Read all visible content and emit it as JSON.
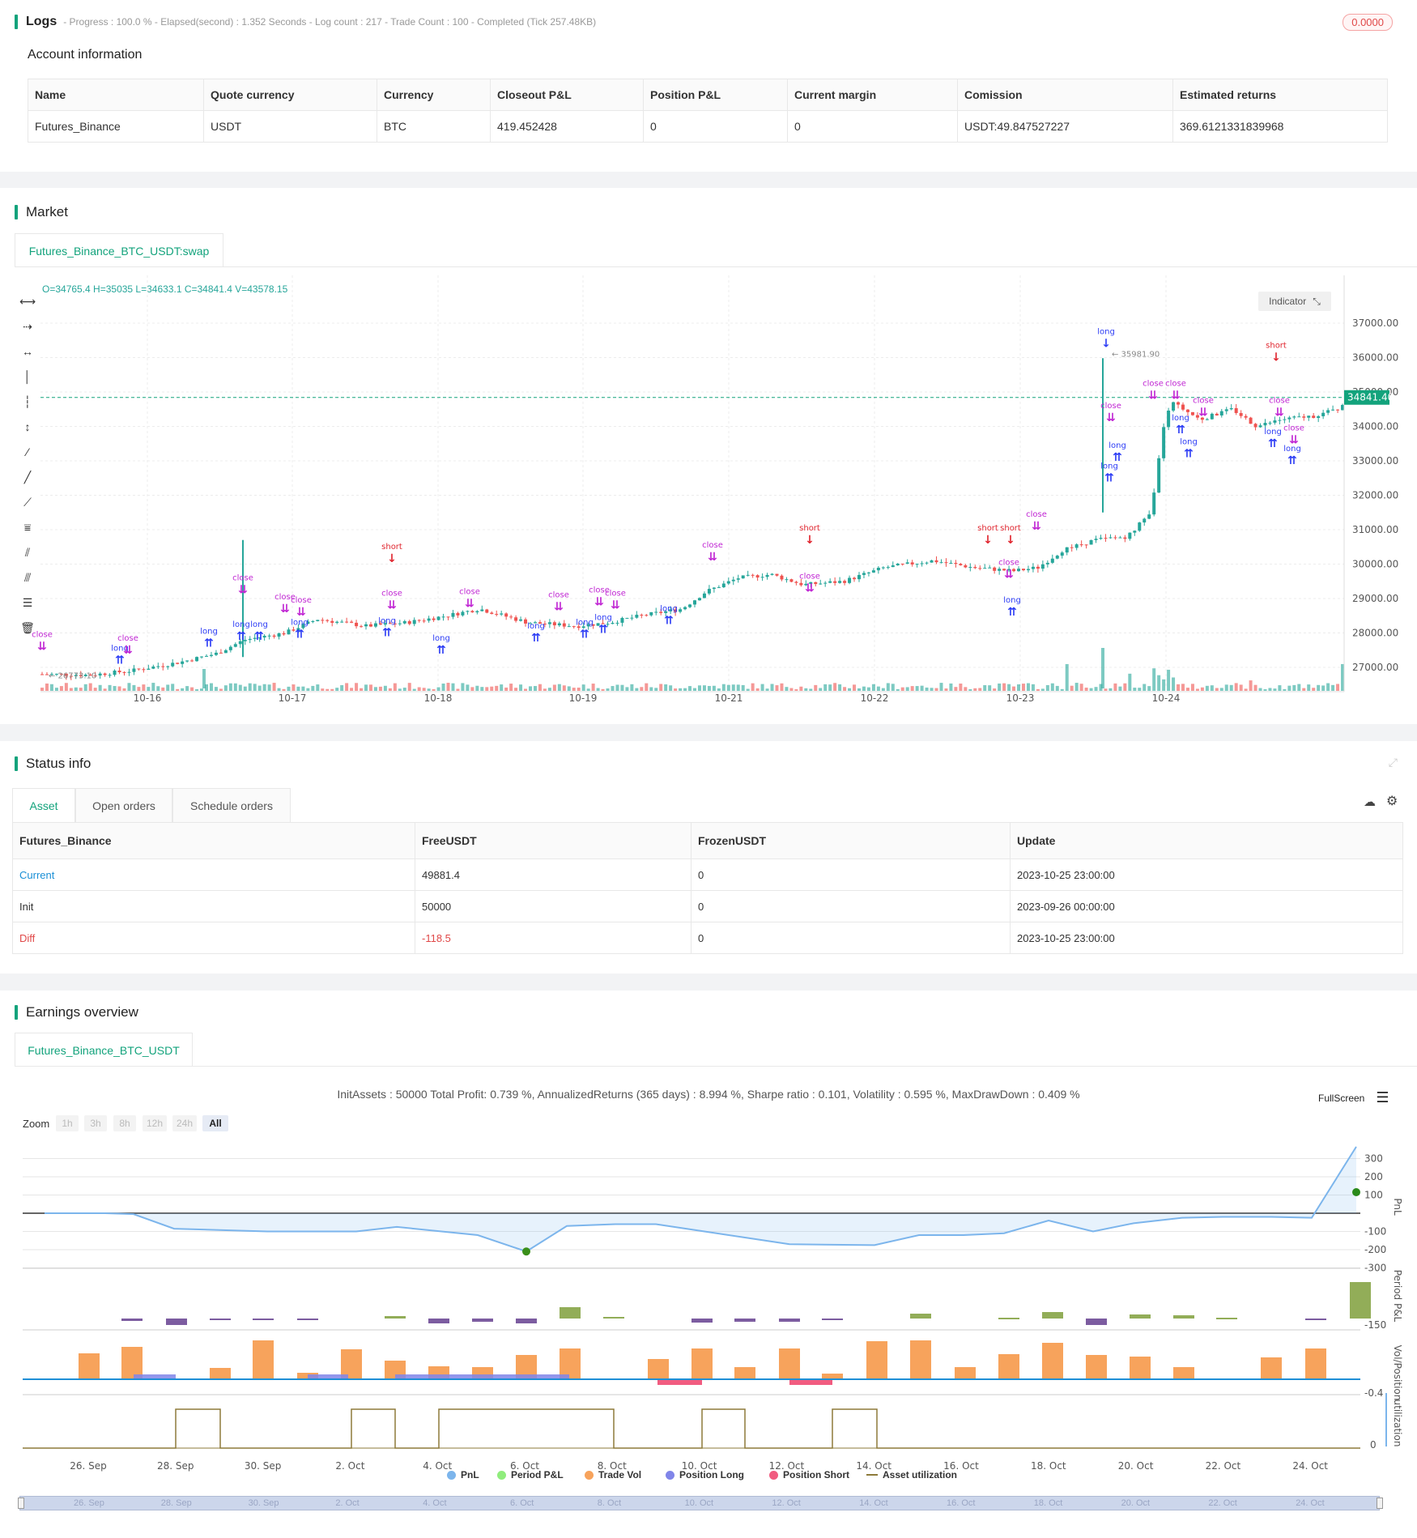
{
  "logs": {
    "title": "Logs",
    "progress_text": "- Progress : 100.0 % - Elapsed(second) : 1.352 Seconds - Log count : 217 - Trade Count : 100 - Completed (Tick 257.48KB)",
    "badge": "0.0000"
  },
  "account": {
    "title": "Account information",
    "headers": [
      "Name",
      "Quote currency",
      "Currency",
      "Closeout P&L",
      "Position P&L",
      "Current margin",
      "Comission",
      "Estimated returns"
    ],
    "row": [
      "Futures_Binance",
      "USDT",
      "BTC",
      "419.452428",
      "0",
      "0",
      "USDT:49.847527227",
      "369.6121331839968"
    ]
  },
  "market": {
    "title": "Market",
    "tab": "Futures_Binance_BTC_USDT:swap",
    "ohlc": "O=34765.4 H=35035 L=34633.1 C=34841.4 V=43578.15",
    "indicator_btn": "Indicator",
    "current_price": "34841.40",
    "high_label": "35981.90",
    "low_label": "26773.10",
    "y_ticks": [
      "37000.00",
      "36000.00",
      "35000.00",
      "34000.00",
      "33000.00",
      "32000.00",
      "31000.00",
      "30000.00",
      "29000.00",
      "28000.00",
      "27000.00"
    ],
    "x_ticks": [
      "10-16",
      "10-17",
      "10-18",
      "10-19",
      "10-21",
      "10-22",
      "10-23",
      "10-24"
    ],
    "colors": {
      "up": "#26a69a",
      "down": "#ef5350",
      "long": "#2d3df5",
      "short": "#e0262f",
      "close": "#c026d3"
    }
  },
  "status": {
    "title": "Status info",
    "tabs": [
      "Asset",
      "Open orders",
      "Schedule orders"
    ],
    "headers": [
      "Futures_Binance",
      "FreeUSDT",
      "FrozenUSDT",
      "Update"
    ],
    "rows": [
      {
        "label": "Current",
        "free": "49881.4",
        "frozen": "0",
        "update": "2023-10-25 23:00:00"
      },
      {
        "label": "Init",
        "free": "50000",
        "frozen": "0",
        "update": "2023-09-26 00:00:00"
      },
      {
        "label": "Diff",
        "free": "-118.5",
        "frozen": "0",
        "update": "2023-10-25 23:00:00"
      }
    ]
  },
  "earnings": {
    "title": "Earnings overview",
    "tab": "Futures_Binance_BTC_USDT",
    "summary": "InitAssets : 50000 Total Profit: 0.739 %, AnnualizedReturns (365 days) : 8.994 %, Sharpe ratio : 0.101, Volatility : 0.595 %, MaxDrawDown : 0.409 %",
    "fullscreen": "FullScreen",
    "zoom_label": "Zoom",
    "zoom_options": [
      "1h",
      "3h",
      "8h",
      "12h",
      "24h",
      "All"
    ],
    "pnl_ticks": [
      "300",
      "200",
      "100",
      "-100",
      "-200",
      "-300"
    ],
    "ppnl_tick": "-150",
    "vol_tick": "-0.4",
    "util_tick": "0",
    "axis_titles": [
      "PnL",
      "Period P&L",
      "Vol/Position",
      "utilization"
    ],
    "x_ticks": [
      "26. Sep",
      "28. Sep",
      "30. Sep",
      "2. Oct",
      "4. Oct",
      "6. Oct",
      "8. Oct",
      "10. Oct",
      "12. Oct",
      "14. Oct",
      "16. Oct",
      "18. Oct",
      "20. Oct",
      "22. Oct",
      "24. Oct"
    ],
    "legend": [
      {
        "name": "PnL",
        "color": "#7cb5ec"
      },
      {
        "name": "Period P&L",
        "color": "#90ed7d"
      },
      {
        "name": "Trade Vol",
        "color": "#f7a35c"
      },
      {
        "name": "Position Long",
        "color": "#8085e9"
      },
      {
        "name": "Position Short",
        "color": "#f15c80"
      },
      {
        "name": "Asset utilization",
        "color": "#8d7a3a"
      }
    ]
  }
}
